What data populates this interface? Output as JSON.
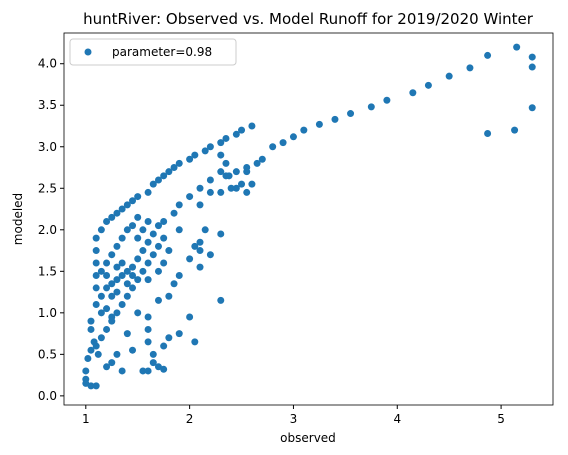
{
  "chart_data": {
    "type": "scatter",
    "title": "huntRiver: Observed vs. Model Runoff for 2019/2020 Winter",
    "xlabel": "observed",
    "ylabel": "modeled",
    "legend": "upper left",
    "xlim": [
      0.79,
      5.5
    ],
    "ylim": [
      -0.11,
      4.37
    ],
    "xticks": [
      1,
      2,
      3,
      4,
      5
    ],
    "yticks": [
      {
        "value": 0,
        "label": "0.0"
      },
      {
        "value": 0.5,
        "label": "0.5"
      },
      {
        "value": 1,
        "label": "1.0"
      },
      {
        "value": 1.5,
        "label": "1.5"
      },
      {
        "value": 2,
        "label": "2.0"
      },
      {
        "value": 2.5,
        "label": "2.5"
      },
      {
        "value": 3,
        "label": "3.0"
      },
      {
        "value": 3.5,
        "label": "3.5"
      },
      {
        "value": 4,
        "label": "4.0"
      }
    ],
    "series": [
      {
        "name": "parameter=0.98",
        "color": "#1f77b4",
        "x": [
          1.1,
          1.15,
          1.2,
          1.25,
          1.3,
          1.35,
          1.4,
          1.45,
          1.5,
          1.6,
          1.65,
          1.7,
          1.75,
          1.8,
          1.85,
          1.9,
          2.0,
          2.05,
          2.15,
          2.2,
          2.3,
          2.35,
          2.45,
          2.5,
          2.6,
          2.9,
          3.0,
          3.1,
          3.25,
          3.4,
          3.55,
          3.75,
          3.9,
          4.15,
          4.3,
          4.5,
          4.7,
          4.87,
          5.15,
          5.3,
          5.3,
          5.3,
          5.13,
          4.87,
          2.65,
          2.7,
          2.8,
          2.55,
          2.45,
          2.38,
          1.45,
          1.5,
          1.55,
          1.6,
          1.65,
          1.7,
          1.75,
          1.85,
          1.9,
          2.0,
          2.1,
          2.2,
          2.3,
          2.35,
          2.4,
          2.5,
          2.6,
          2.55,
          2.35,
          2.2,
          2.1,
          2.3,
          2.3,
          2.45,
          2.55,
          1.0,
          1.0,
          1.05,
          1.1,
          1.0,
          1.02,
          1.05,
          1.1,
          1.15,
          1.2,
          1.25,
          1.3,
          1.35,
          1.4,
          1.45,
          1.5,
          1.55,
          1.6,
          1.65,
          1.6,
          1.6,
          1.6,
          1.65,
          1.65,
          1.7,
          1.75,
          1.8,
          1.9,
          2.05,
          2.0,
          1.8,
          1.85,
          1.9,
          2.0,
          2.1,
          2.15,
          2.05,
          2.2,
          2.3,
          2.3,
          2.1,
          2.1,
          1.7,
          1.6,
          1.7,
          1.75,
          1.8,
          1.9,
          1.75,
          1.7,
          1.5,
          1.4,
          1.3,
          1.25,
          1.45,
          1.55,
          1.6,
          1.75,
          1.35,
          1.2,
          1.15,
          1.1,
          1.1,
          1.1,
          1.1,
          1.1,
          1.15,
          1.15,
          1.2,
          1.2,
          1.25,
          1.3,
          1.3,
          1.35,
          1.35,
          1.4,
          1.4,
          1.45,
          1.25,
          1.3,
          1.35,
          1.4,
          1.45,
          1.5,
          1.2,
          1.25,
          1.3,
          1.2,
          1.25,
          1.5,
          1.55,
          1.6,
          1.05,
          1.05,
          1.08,
          1.12
        ],
        "values": [
          1.9,
          2.0,
          2.1,
          2.15,
          2.2,
          2.25,
          2.3,
          2.35,
          2.4,
          2.45,
          2.55,
          2.6,
          2.65,
          2.7,
          2.75,
          2.8,
          2.85,
          2.9,
          2.95,
          3.0,
          3.05,
          3.1,
          3.15,
          3.2,
          3.25,
          3.05,
          3.12,
          3.2,
          3.27,
          3.33,
          3.4,
          3.48,
          3.56,
          3.65,
          3.74,
          3.85,
          3.95,
          4.1,
          4.2,
          4.08,
          3.96,
          3.47,
          3.2,
          3.16,
          2.8,
          2.85,
          3.0,
          2.75,
          2.7,
          2.65,
          1.55,
          1.65,
          1.75,
          1.85,
          1.95,
          2.05,
          2.1,
          2.2,
          2.3,
          2.4,
          2.5,
          2.6,
          2.7,
          2.8,
          2.5,
          2.55,
          2.55,
          2.7,
          2.65,
          2.45,
          2.3,
          2.9,
          2.45,
          2.5,
          2.45,
          0.2,
          0.15,
          0.12,
          0.12,
          0.3,
          0.45,
          0.55,
          0.6,
          0.7,
          0.8,
          0.9,
          1.0,
          1.1,
          1.2,
          1.3,
          1.4,
          1.5,
          1.6,
          1.7,
          0.95,
          0.8,
          0.65,
          0.5,
          0.4,
          0.35,
          0.6,
          0.7,
          0.75,
          0.65,
          0.95,
          1.2,
          1.35,
          1.45,
          1.65,
          1.85,
          2.0,
          1.8,
          1.7,
          1.95,
          1.15,
          1.55,
          1.75,
          1.15,
          1.4,
          1.5,
          1.6,
          1.75,
          2.0,
          1.9,
          1.8,
          1.0,
          0.75,
          0.5,
          0.4,
          0.55,
          0.3,
          0.3,
          0.32,
          0.3,
          0.35,
          1.0,
          1.1,
          1.3,
          1.45,
          1.6,
          1.75,
          1.2,
          1.5,
          1.3,
          1.45,
          1.35,
          1.4,
          1.55,
          1.45,
          1.6,
          1.5,
          1.35,
          1.45,
          1.7,
          1.8,
          1.9,
          2.0,
          2.05,
          2.15,
          1.6,
          1.2,
          1.25,
          1.05,
          0.95,
          1.9,
          2.0,
          2.1,
          0.8,
          0.9,
          0.65,
          0.5
        ]
      }
    ]
  }
}
